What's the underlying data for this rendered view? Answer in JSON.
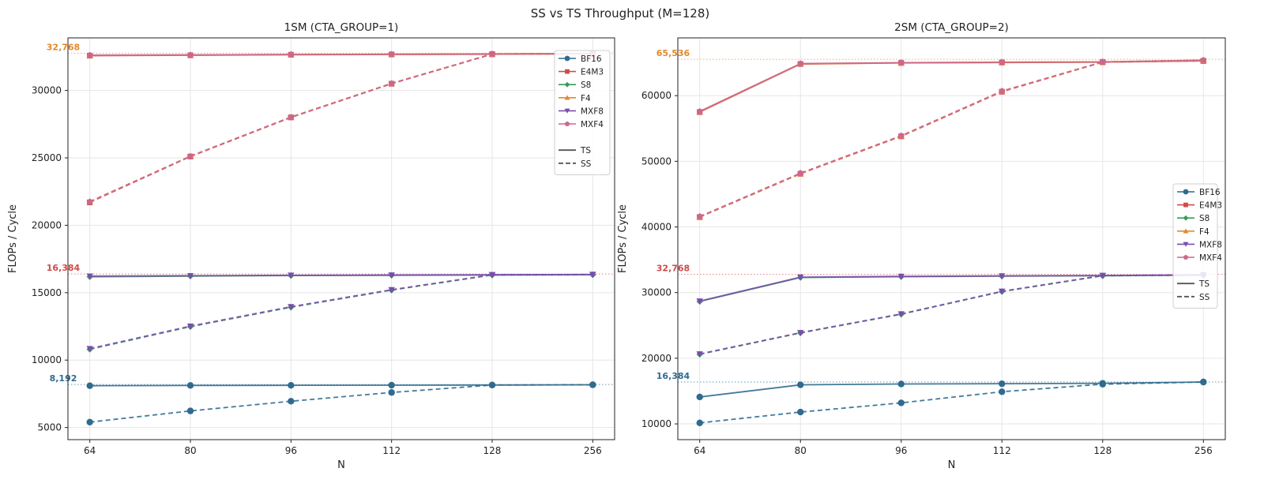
{
  "title": "SS vs TS Throughput (M=128)",
  "colors": {
    "BF16": "#2f6b8f",
    "E4M3": "#cf4a4a",
    "S8": "#3a9a5b",
    "F4": "#e08a2e",
    "MXF8": "#7b4bb0",
    "MXF4": "#cc6690"
  },
  "marker_shapes": {
    "BF16": "circle",
    "E4M3": "square",
    "S8": "diamond",
    "F4": "triangle-up",
    "MXF8": "triangle-down",
    "MXF4": "pentagon"
  },
  "chart_data": [
    {
      "type": "line",
      "title": "1SM (CTA_GROUP=1)",
      "xlabel": "N",
      "ylabel": "FLOPs / Cycle",
      "categories": [
        "64",
        "80",
        "96",
        "112",
        "128",
        "256"
      ],
      "ylim": [
        4100,
        33900
      ],
      "yticks": [
        5000,
        10000,
        15000,
        20000,
        25000,
        30000
      ],
      "grid": true,
      "legend_position": "top-right",
      "legend_entries": [
        "BF16",
        "E4M3",
        "S8",
        "F4",
        "MXF8",
        "MXF4"
      ],
      "legend_style_entries": [
        "TS",
        "SS"
      ],
      "reference_lines": [
        {
          "value": 32768,
          "label": "32,768",
          "color": "#e08a2e"
        },
        {
          "value": 16384,
          "label": "16,384",
          "color": "#cf4a4a"
        },
        {
          "value": 8192,
          "label": "8,192",
          "color": "#2f6b8f"
        }
      ],
      "series": [
        {
          "name": "BF16",
          "mode": "TS",
          "values": [
            8100,
            8120,
            8130,
            8140,
            8150,
            8170
          ]
        },
        {
          "name": "BF16",
          "mode": "SS",
          "values": [
            5400,
            6230,
            6950,
            7600,
            8150,
            8170
          ]
        },
        {
          "name": "E4M3",
          "mode": "TS",
          "values": [
            32580,
            32610,
            32650,
            32670,
            32690,
            32720
          ]
        },
        {
          "name": "E4M3",
          "mode": "SS",
          "values": [
            21700,
            25100,
            28000,
            30500,
            32690,
            32720
          ]
        },
        {
          "name": "S8",
          "mode": "TS",
          "values": [
            16180,
            16230,
            16270,
            16290,
            16310,
            16330
          ]
        },
        {
          "name": "S8",
          "mode": "SS",
          "values": [
            10800,
            12480,
            13920,
            15190,
            16310,
            16330
          ]
        },
        {
          "name": "F4",
          "mode": "TS",
          "values": [
            32600,
            32630,
            32660,
            32680,
            32700,
            32730
          ]
        },
        {
          "name": "F4",
          "mode": "SS",
          "values": [
            21760,
            25130,
            28030,
            30530,
            32700,
            32730
          ]
        },
        {
          "name": "MXF8",
          "mode": "TS",
          "values": [
            16230,
            16260,
            16290,
            16310,
            16330,
            16350
          ]
        },
        {
          "name": "MXF8",
          "mode": "SS",
          "values": [
            10850,
            12520,
            13960,
            15220,
            16330,
            16350
          ]
        },
        {
          "name": "MXF4",
          "mode": "TS",
          "values": [
            32620,
            32640,
            32670,
            32690,
            32710,
            32740
          ]
        },
        {
          "name": "MXF4",
          "mode": "SS",
          "values": [
            21750,
            25120,
            28020,
            30520,
            32710,
            32740
          ]
        }
      ]
    },
    {
      "type": "line",
      "title": "2SM (CTA_GROUP=2)",
      "xlabel": "N",
      "ylabel": "FLOPs / Cycle",
      "categories": [
        "64",
        "80",
        "96",
        "112",
        "128",
        "256"
      ],
      "ylim": [
        7600,
        68800
      ],
      "yticks": [
        10000,
        20000,
        30000,
        40000,
        50000,
        60000
      ],
      "grid": true,
      "legend_position": "center-right",
      "legend_entries": [
        "BF16",
        "E4M3",
        "S8",
        "F4",
        "MXF8",
        "MXF4"
      ],
      "legend_style_entries": [
        "TS",
        "SS"
      ],
      "reference_lines": [
        {
          "value": 65536,
          "label": "65,536",
          "color": "#e08a2e"
        },
        {
          "value": 32768,
          "label": "32,768",
          "color": "#cf4a4a"
        },
        {
          "value": 16384,
          "label": "16,384",
          "color": "#2f6b8f"
        }
      ],
      "series": [
        {
          "name": "BF16",
          "mode": "TS",
          "values": [
            14100,
            15950,
            16080,
            16120,
            16180,
            16380
          ]
        },
        {
          "name": "BF16",
          "mode": "SS",
          "values": [
            10150,
            11800,
            13200,
            14900,
            16050,
            16380
          ]
        },
        {
          "name": "E4M3",
          "mode": "TS",
          "values": [
            57500,
            64820,
            64980,
            65050,
            65100,
            65300
          ]
        },
        {
          "name": "E4M3",
          "mode": "SS",
          "values": [
            41500,
            48100,
            53800,
            60600,
            65100,
            65300
          ]
        },
        {
          "name": "S8",
          "mode": "TS",
          "values": [
            28650,
            32300,
            32420,
            32500,
            32560,
            32650
          ]
        },
        {
          "name": "S8",
          "mode": "SS",
          "values": [
            20600,
            23850,
            26700,
            30150,
            32560,
            32650
          ]
        },
        {
          "name": "F4",
          "mode": "TS",
          "values": [
            57550,
            64850,
            65000,
            65080,
            65120,
            65350
          ]
        },
        {
          "name": "F4",
          "mode": "SS",
          "values": [
            41550,
            48150,
            53850,
            60650,
            65120,
            65350
          ]
        },
        {
          "name": "MXF8",
          "mode": "TS",
          "values": [
            28700,
            32350,
            32470,
            32540,
            32600,
            32700
          ]
        },
        {
          "name": "MXF8",
          "mode": "SS",
          "values": [
            20650,
            23900,
            26750,
            30200,
            32600,
            32700
          ]
        },
        {
          "name": "MXF4",
          "mode": "TS",
          "values": [
            57600,
            64880,
            65030,
            65100,
            65150,
            65400
          ]
        },
        {
          "name": "MXF4",
          "mode": "SS",
          "values": [
            41600,
            48200,
            53900,
            60700,
            65150,
            65400
          ]
        }
      ]
    }
  ]
}
